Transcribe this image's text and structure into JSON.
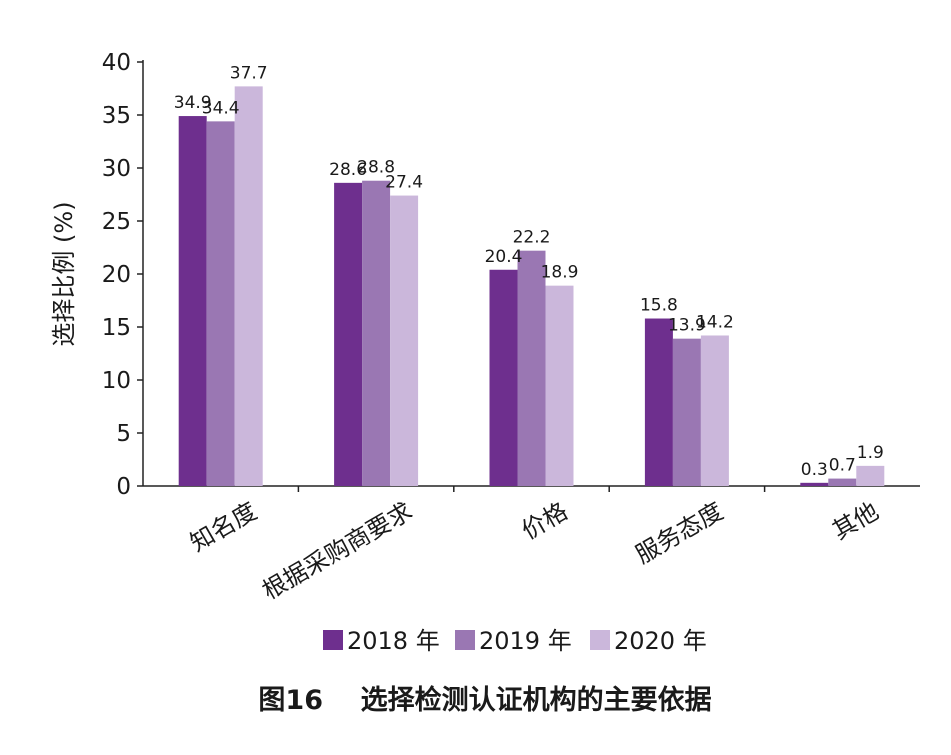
{
  "chart_data": {
    "type": "bar",
    "title": "图16    选择检测认证机构的主要依据",
    "xlabel": "",
    "ylabel": "选择比例 (%)",
    "ylim": [
      0,
      40
    ],
    "yticks": [
      0,
      5,
      10,
      15,
      20,
      25,
      30,
      35,
      40
    ],
    "grid": false,
    "legend_position": "bottom",
    "categories": [
      "知名度",
      "根据采购商要求",
      "价格",
      "服务态度",
      "其他"
    ],
    "series": [
      {
        "name": "2018 年",
        "color": "#6e2f8e",
        "values": [
          34.9,
          28.6,
          20.4,
          15.8,
          0.3
        ]
      },
      {
        "name": "2019 年",
        "color": "#9a77b3",
        "values": [
          34.4,
          28.8,
          22.2,
          13.9,
          0.7
        ]
      },
      {
        "name": "2020 年",
        "color": "#cbb7db",
        "values": [
          37.7,
          27.4,
          18.9,
          14.2,
          1.9
        ]
      }
    ]
  }
}
